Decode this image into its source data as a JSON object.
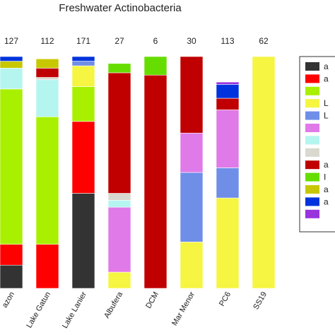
{
  "chart_data": {
    "type": "bar",
    "stacked": true,
    "normalized": true,
    "title": "Freshwater Actinobacteria",
    "categories": [
      "azon",
      "Lake Gatun",
      "Lake Lanier",
      "Albufera",
      "DCM",
      "Mar Menor",
      "PC6",
      "SS19"
    ],
    "counts": [
      "127",
      "112",
      "171",
      "27",
      "6",
      "30",
      "113",
      "62"
    ],
    "ylim": [
      0,
      100
    ],
    "series": [
      {
        "name": "a",
        "color": "#333333",
        "values": [
          10,
          0,
          41,
          0,
          0,
          0,
          0,
          0
        ]
      },
      {
        "name": "a",
        "color": "#ff0000",
        "values": [
          9,
          19,
          31,
          0,
          0,
          0,
          0,
          0
        ]
      },
      {
        "name": "",
        "color": "#a8f000",
        "values": [
          67,
          55,
          15,
          0,
          0,
          0,
          0,
          0
        ]
      },
      {
        "name": "L",
        "color": "#f5f542",
        "values": [
          0,
          0,
          9,
          7,
          0,
          20,
          39,
          100
        ]
      },
      {
        "name": "L",
        "color": "#6f8ee8",
        "values": [
          0,
          0,
          2,
          0,
          0,
          30,
          13,
          0
        ]
      },
      {
        "name": "",
        "color": "#e07ae8",
        "values": [
          0,
          0,
          0,
          28,
          0,
          17,
          25,
          0
        ]
      },
      {
        "name": "",
        "color": "#b5f5f0",
        "values": [
          9,
          16,
          0,
          3,
          0,
          0,
          0,
          0
        ]
      },
      {
        "name": "",
        "color": "#d9d9d0",
        "values": [
          0,
          1,
          0,
          3,
          0,
          0,
          0,
          0
        ]
      },
      {
        "name": "a",
        "color": "#c00000",
        "values": [
          0,
          4,
          0,
          52,
          92,
          33,
          5,
          0
        ]
      },
      {
        "name": "I",
        "color": "#66dd00",
        "values": [
          0,
          0,
          0,
          4,
          8,
          0,
          0,
          0
        ]
      },
      {
        "name": "a",
        "color": "#c8c800",
        "values": [
          3,
          4,
          0,
          0,
          0,
          0,
          0,
          0
        ]
      },
      {
        "name": "a",
        "color": "#0033dd",
        "values": [
          2,
          0,
          2,
          0,
          0,
          0,
          6,
          0
        ]
      },
      {
        "name": "",
        "color": "#9933dd",
        "values": [
          0,
          0,
          0,
          0,
          0,
          0,
          1,
          0
        ]
      }
    ],
    "legend_position": "right"
  }
}
